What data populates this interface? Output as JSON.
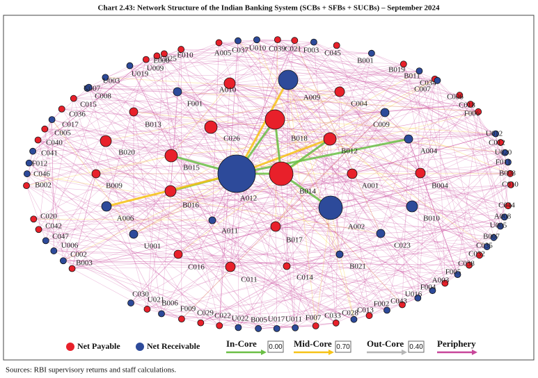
{
  "title": "Chart 2.43: Network Structure of the Indian Banking System (SCBs + SFBs + SUCBs) – September 2024",
  "nodes": [
    {
      "label": "A010",
      "color": "#e8202a"
    },
    {
      "label": "A009",
      "color": "#2d4a9a"
    },
    {
      "label": "C004",
      "color": "#e8202a"
    },
    {
      "label": "F001",
      "color": "#2d4a9a"
    },
    {
      "label": "B013",
      "color": "#e8202a"
    },
    {
      "label": "B018",
      "color": "#e8202a"
    },
    {
      "label": "C026",
      "color": "#e8202a"
    },
    {
      "label": "C009",
      "color": "#2d4a9a"
    },
    {
      "label": "B012",
      "color": "#e8202a"
    },
    {
      "label": "A004",
      "color": "#2d4a9a"
    },
    {
      "label": "B020",
      "color": "#e8202a"
    },
    {
      "label": "B015",
      "color": "#e8202a"
    },
    {
      "label": "A012",
      "color": "#2d4a9a"
    },
    {
      "label": "B014",
      "color": "#e8202a"
    },
    {
      "label": "A001",
      "color": "#e8202a"
    },
    {
      "label": "B004",
      "color": "#e8202a"
    },
    {
      "label": "B009",
      "color": "#e8202a"
    },
    {
      "label": "B016",
      "color": "#e8202a"
    },
    {
      "label": "A006",
      "color": "#2d4a9a"
    },
    {
      "label": "A002",
      "color": "#2d4a9a"
    },
    {
      "label": "B010",
      "color": "#2d4a9a"
    },
    {
      "label": "A011",
      "color": "#2d4a9a"
    },
    {
      "label": "B017",
      "color": "#e8202a"
    },
    {
      "label": "U001",
      "color": "#2d4a9a"
    },
    {
      "label": "C023",
      "color": "#2d4a9a"
    },
    {
      "label": "C016",
      "color": "#e8202a"
    },
    {
      "label": "B021",
      "color": "#2d4a9a"
    },
    {
      "label": "C011",
      "color": "#e8202a"
    },
    {
      "label": "C014",
      "color": "#e8202a"
    },
    {
      "label": "E010",
      "color": "#e8202a"
    },
    {
      "label": "A005",
      "color": "#e8202a"
    },
    {
      "label": "C037",
      "color": "#2d4a9a"
    },
    {
      "label": "U010",
      "color": "#2d4a9a"
    },
    {
      "label": "C039",
      "color": "#e8202a"
    },
    {
      "label": "C021",
      "color": "#e8202a"
    },
    {
      "label": "F003",
      "color": "#2d4a9a"
    },
    {
      "label": "C045",
      "color": "#e8202a"
    },
    {
      "label": "B001",
      "color": "#2d4a9a"
    },
    {
      "label": "B019",
      "color": "#e8202a"
    },
    {
      "label": "B011",
      "color": "#2d4a9a"
    },
    {
      "label": "C034",
      "color": "#e8202a"
    },
    {
      "label": "C007",
      "color": "#2d4a9a"
    },
    {
      "label": "C006",
      "color": "#e8202a"
    },
    {
      "label": "C018",
      "color": "#e8202a"
    },
    {
      "label": "F006",
      "color": "#e8202a"
    },
    {
      "label": "U012",
      "color": "#2d4a9a"
    },
    {
      "label": "C012",
      "color": "#e8202a"
    },
    {
      "label": "U020",
      "color": "#2d4a9a"
    },
    {
      "label": "F011",
      "color": "#2d4a9a"
    },
    {
      "label": "B008",
      "color": "#e8202a"
    },
    {
      "label": "C010",
      "color": "#e8202a"
    },
    {
      "label": "C044",
      "color": "#e8202a"
    },
    {
      "label": "A008",
      "color": "#2d4a9a"
    },
    {
      "label": "U005",
      "color": "#2d4a9a"
    },
    {
      "label": "B007",
      "color": "#2d4a9a"
    },
    {
      "label": "C035",
      "color": "#2d4a9a"
    },
    {
      "label": "C032",
      "color": "#e8202a"
    },
    {
      "label": "C038",
      "color": "#e8202a"
    },
    {
      "label": "F005",
      "color": "#2d4a9a"
    },
    {
      "label": "A003",
      "color": "#e8202a"
    },
    {
      "label": "F004",
      "color": "#2d4a9a"
    },
    {
      "label": "U016",
      "color": "#2d4a9a"
    },
    {
      "label": "C043",
      "color": "#e8202a"
    },
    {
      "label": "F002",
      "color": "#2d4a9a"
    },
    {
      "label": "C013",
      "color": "#e8202a"
    },
    {
      "label": "C028",
      "color": "#2d4a9a"
    },
    {
      "label": "C033",
      "color": "#e8202a"
    },
    {
      "label": "F007",
      "color": "#e8202a"
    },
    {
      "label": "U011",
      "color": "#2d4a9a"
    },
    {
      "label": "U017",
      "color": "#2d4a9a"
    },
    {
      "label": "B005",
      "color": "#2d4a9a"
    },
    {
      "label": "U022",
      "color": "#2d4a9a"
    },
    {
      "label": "C022",
      "color": "#e8202a"
    },
    {
      "label": "C029",
      "color": "#e8202a"
    },
    {
      "label": "F009",
      "color": "#e8202a"
    },
    {
      "label": "B006",
      "color": "#2d4a9a"
    },
    {
      "label": "U021",
      "color": "#e8202a"
    },
    {
      "label": "C030",
      "color": "#2d4a9a"
    },
    {
      "label": "B003",
      "color": "#e8202a"
    },
    {
      "label": "C002",
      "color": "#2d4a9a"
    },
    {
      "label": "U006",
      "color": "#2d4a9a"
    },
    {
      "label": "C047",
      "color": "#2d4a9a"
    },
    {
      "label": "C042",
      "color": "#e8202a"
    },
    {
      "label": "C020",
      "color": "#e8202a"
    },
    {
      "label": "B002",
      "color": "#e8202a"
    },
    {
      "label": "C046",
      "color": "#2d4a9a"
    },
    {
      "label": "F012",
      "color": "#2d4a9a"
    },
    {
      "label": "C041",
      "color": "#2d4a9a"
    },
    {
      "label": "C040",
      "color": "#e8202a"
    },
    {
      "label": "C005",
      "color": "#e8202a"
    },
    {
      "label": "C017",
      "color": "#2d4a9a"
    },
    {
      "label": "C036",
      "color": "#e8202a"
    },
    {
      "label": "C015",
      "color": "#e8202a"
    },
    {
      "label": "C008",
      "color": "#2d4a9a"
    },
    {
      "label": "U007",
      "color": "#2d4a9a"
    },
    {
      "label": "U003",
      "color": "#2d4a9a"
    },
    {
      "label": "U019",
      "color": "#2d4a9a"
    },
    {
      "label": "U009",
      "color": "#e8202a"
    },
    {
      "label": "E000",
      "color": "#e8202a"
    },
    {
      "label": "C025",
      "color": "#e8202a"
    }
  ],
  "legend": {
    "net_payable": {
      "label": "Net Payable",
      "color": "#e8202a"
    },
    "net_receivable": {
      "label": "Net Receivable",
      "color": "#2d4a9a"
    }
  },
  "tiers": [
    {
      "label": "In-Core",
      "value": "0.00",
      "color": "#6abf45"
    },
    {
      "label": "Mid-Core",
      "value": "0.70",
      "color": "#f6c316"
    },
    {
      "label": "Out-Core",
      "value": "0.40",
      "color": "#b5b5b5"
    },
    {
      "label": "Periphery",
      "color": "#c8469a"
    }
  ],
  "source": "Sources: RBI supervisory returns and staff calculations."
}
